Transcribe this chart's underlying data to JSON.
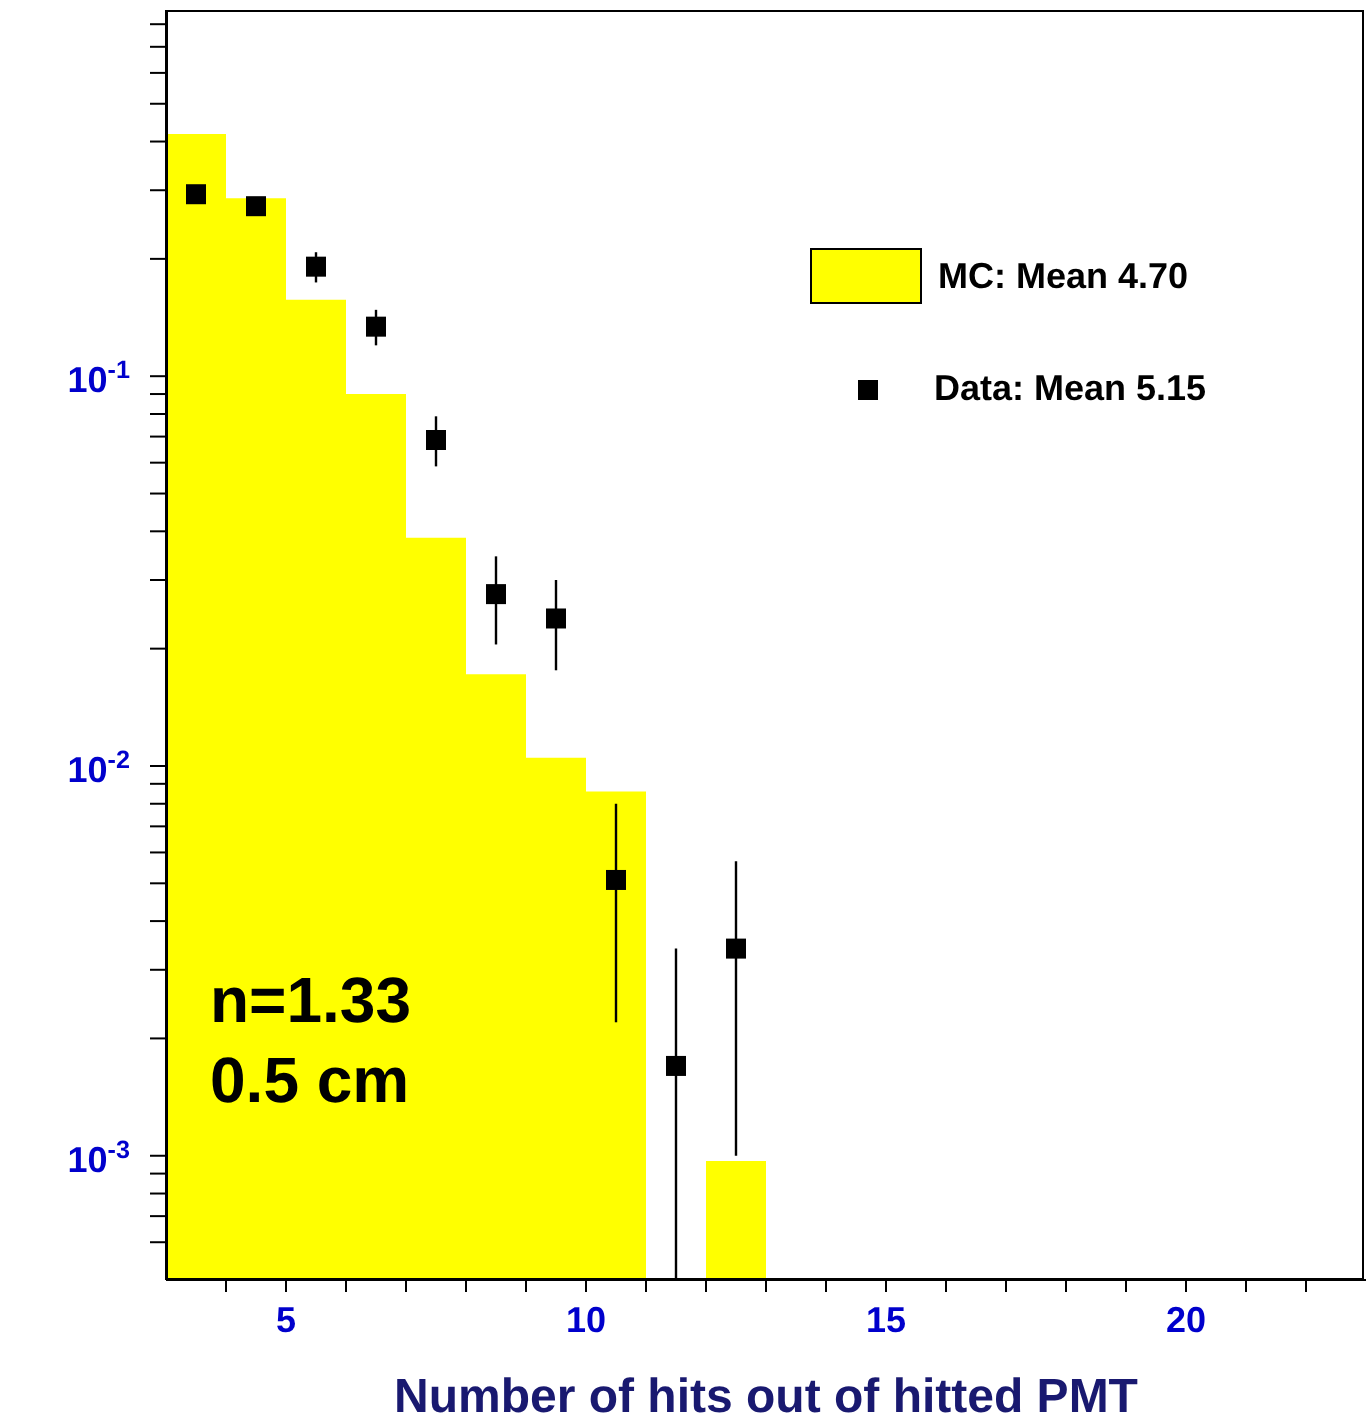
{
  "chart_data": {
    "type": "histogram",
    "xlabel": "Number of hits out of hitted PMT",
    "log": "y",
    "legend": "top right",
    "marker": "square",
    "bins": [
      3,
      4,
      5,
      6,
      7,
      8,
      9,
      10,
      11,
      12,
      13
    ],
    "series": [
      {
        "name": "MC: Mean 4.70",
        "color": "#ffff00",
        "values": [
          0.418,
          0.286,
          0.157,
          0.09,
          0.0385,
          0.0172,
          0.0105,
          0.0086,
          null,
          0.00097
        ]
      },
      {
        "type": "scatter",
        "name": "Data: Mean 5.15",
        "color": "#000000",
        "x": [
          3.5,
          4.5,
          5.5,
          6.5,
          7.5,
          8.5,
          9.5,
          10.5,
          11.5,
          12.5
        ],
        "values": [
          0.293,
          0.273,
          0.191,
          0.134,
          0.0686,
          0.0276,
          0.0239,
          0.0051,
          0.0017,
          0.0034
        ],
        "errors": [
          [
            0.28,
            0.305
          ],
          [
            0.26,
            0.286
          ],
          [
            0.174,
            0.208
          ],
          [
            0.12,
            0.148
          ],
          [
            0.0587,
            0.0789
          ],
          [
            0.0205,
            0.0345
          ],
          [
            0.0176,
            0.03
          ],
          [
            0.0022,
            0.008
          ],
          [
            0.00048,
            0.0034
          ],
          [
            0.001,
            0.0057
          ]
        ]
      }
    ],
    "xlim": [
      3,
      23
    ],
    "ylim": [
      0.00048,
      0.87
    ],
    "xticks": [
      {
        "value": 4,
        "label": null
      },
      5,
      {
        "value": 6,
        "label": null
      },
      {
        "value": 7,
        "label": null
      },
      {
        "value": 8,
        "label": null
      },
      {
        "value": 9,
        "label": null
      },
      10,
      {
        "value": 11,
        "label": null
      },
      {
        "value": 12,
        "label": null
      },
      {
        "value": 13,
        "label": null
      },
      {
        "value": 14,
        "label": null
      },
      15,
      {
        "value": 16,
        "label": null
      },
      {
        "value": 17,
        "label": null
      },
      {
        "value": 18,
        "label": null
      },
      {
        "value": 19,
        "label": null
      },
      20,
      {
        "value": 21,
        "label": null
      },
      {
        "value": 22,
        "label": null
      }
    ],
    "yticks": [
      {
        "value": 0.0006,
        "label": null
      },
      {
        "value": 0.0007,
        "label": null
      },
      {
        "value": 0.0008,
        "label": null
      },
      {
        "value": 0.0009,
        "label": null
      },
      {
        "value": 0.001,
        "label": "10$^{-3}$"
      },
      {
        "value": 0.002,
        "label": null
      },
      {
        "value": 0.003,
        "label": null
      },
      {
        "value": 0.004,
        "label": null
      },
      {
        "value": 0.005,
        "label": null
      },
      {
        "value": 0.006,
        "label": null
      },
      {
        "value": 0.007,
        "label": null
      },
      {
        "value": 0.008,
        "label": null
      },
      {
        "value": 0.009,
        "label": null
      },
      {
        "value": 0.01,
        "label": "10$^{-2}$"
      },
      {
        "value": 0.02,
        "label": null
      },
      {
        "value": 0.03,
        "label": null
      },
      {
        "value": 0.04,
        "label": null
      },
      {
        "value": 0.05,
        "label": null
      },
      {
        "value": 0.06,
        "label": null
      },
      {
        "value": 0.07,
        "label": null
      },
      {
        "value": 0.08,
        "label": null
      },
      {
        "value": 0.09,
        "label": null
      },
      {
        "value": 0.1,
        "label": "10$^{-1}$"
      },
      {
        "value": 0.2,
        "label": null
      },
      {
        "value": 0.3,
        "label": null
      },
      {
        "value": 0.4,
        "label": null
      },
      {
        "value": 0.5,
        "label": null
      },
      {
        "value": 0.6,
        "label": null
      },
      {
        "value": 0.7,
        "label": null
      },
      {
        "value": 0.8,
        "label": null
      }
    ],
    "annotations": [
      "n=1.33",
      "0.5 cm"
    ]
  }
}
